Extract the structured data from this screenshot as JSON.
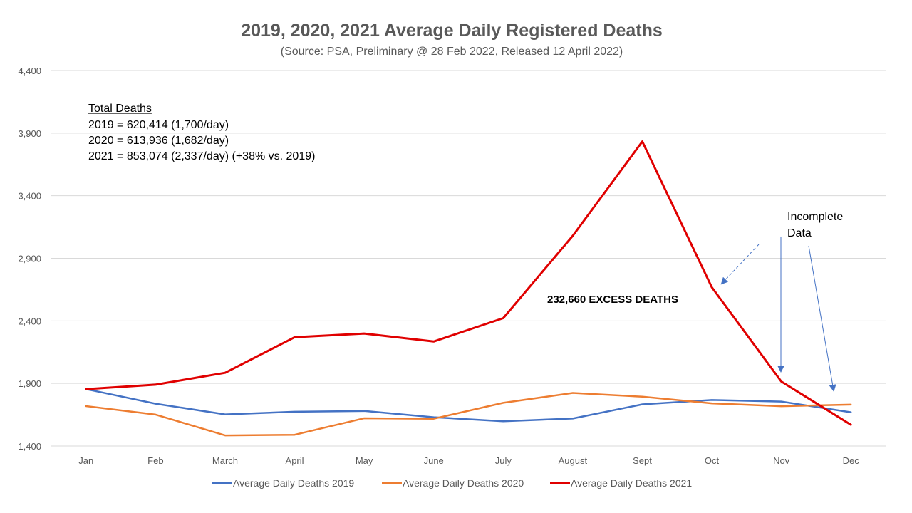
{
  "chart_data": {
    "type": "line",
    "title": "2019, 2020, 2021 Average Daily Registered Deaths",
    "subtitle": "(Source: PSA, Preliminary @ 28 Feb 2022, Released 12 April 2022)",
    "categories": [
      "Jan",
      "Feb",
      "March",
      "April",
      "May",
      "June",
      "July",
      "August",
      "Sept",
      "Oct",
      "Nov",
      "Dec"
    ],
    "ylim": [
      1400,
      4400
    ],
    "yticks": [
      1400,
      1900,
      2400,
      2900,
      3400,
      3900,
      4400
    ],
    "ytick_labels": [
      "1,400",
      "1,900",
      "2,400",
      "2,900",
      "3,400",
      "3,900",
      "4,400"
    ],
    "grid": true,
    "legend_position": "bottom",
    "series": [
      {
        "name": "Average Daily Deaths 2019",
        "color": "#4472c4",
        "values": [
          1855,
          1738,
          1653,
          1674,
          1680,
          1630,
          1598,
          1620,
          1733,
          1768,
          1755,
          1670
        ]
      },
      {
        "name": "Average Daily Deaths 2020",
        "color": "#ed7d31",
        "values": [
          1719,
          1651,
          1485,
          1490,
          1622,
          1618,
          1745,
          1824,
          1794,
          1741,
          1718,
          1731
        ]
      },
      {
        "name": "Average Daily Deaths 2021",
        "color": "#e00000",
        "values": [
          1855,
          1890,
          1985,
          2269,
          2299,
          2235,
          2422,
          3080,
          3833,
          2669,
          1915,
          1570
        ]
      }
    ],
    "annotations": {
      "total_heading": "Total Deaths",
      "total_lines": [
        "2019 = 620,414 (1,700/day)",
        "2020 = 613,936 (1,682/day)",
        "2021 = 853,074 (2,337/day) (+38% vs. 2019)"
      ],
      "excess_label": "232,660 EXCESS DEATHS",
      "incomplete_line1": "Incomplete",
      "incomplete_line2": "Data"
    }
  }
}
